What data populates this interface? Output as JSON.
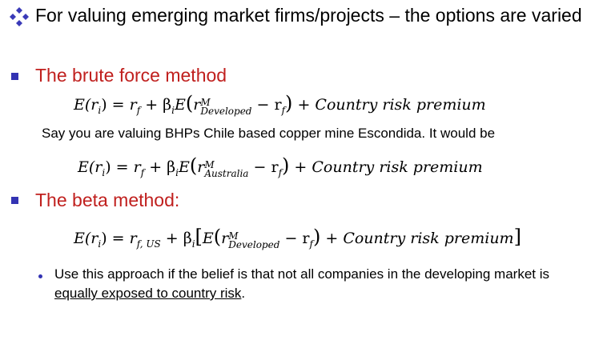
{
  "heading": {
    "text": "For valuing emerging market firms/projects – the options are varied"
  },
  "brute_force": {
    "title": "The brute force method",
    "eq": {
      "lhs": "E(r",
      "lhs_sub": "i",
      "lhs_end": ") = ",
      "rf": "r",
      "rf_sub": "f",
      "plus": " + β",
      "beta_sub": "i",
      "e": "E",
      "open": "(",
      "r": "r",
      "sup": "M",
      "sub": "Developed",
      "minus": " − r",
      "minus_sub": "f",
      "close": ")",
      "crp": " + Country risk premium"
    },
    "example": "Say you are valuing BHPs Chile based copper mine Escondida. It would be",
    "eq2": {
      "lhs": "E(r",
      "lhs_sub": "i",
      "lhs_end": ") = ",
      "rf": "r",
      "rf_sub": "f",
      "plus": " + β",
      "beta_sub": "i",
      "e": "E",
      "open": "(",
      "r": "r",
      "sup": "M",
      "sub": "Australia",
      "minus": " − r",
      "minus_sub": "f",
      "close": ")",
      "crp": " + Country risk premium"
    }
  },
  "beta_method": {
    "title": "The beta method:",
    "eq": {
      "lhs": "E(r",
      "lhs_sub": "i",
      "lhs_end": ") = ",
      "rf": "r",
      "rf_sub": "f, US",
      "plus": " + β",
      "beta_sub": "i",
      "open_bracket": "[",
      "e": "E",
      "open": "(",
      "r": "r",
      "sup": "M",
      "sub": "Developed",
      "minus": " − r",
      "minus_sub": "f",
      "close": ")",
      "crp": " + Country risk premium",
      "close_bracket": "]"
    },
    "note_before": "Use this approach if the belief is that not all companies in the developing market is ",
    "note_underlined": "equally exposed to country risk",
    "note_after": "."
  }
}
